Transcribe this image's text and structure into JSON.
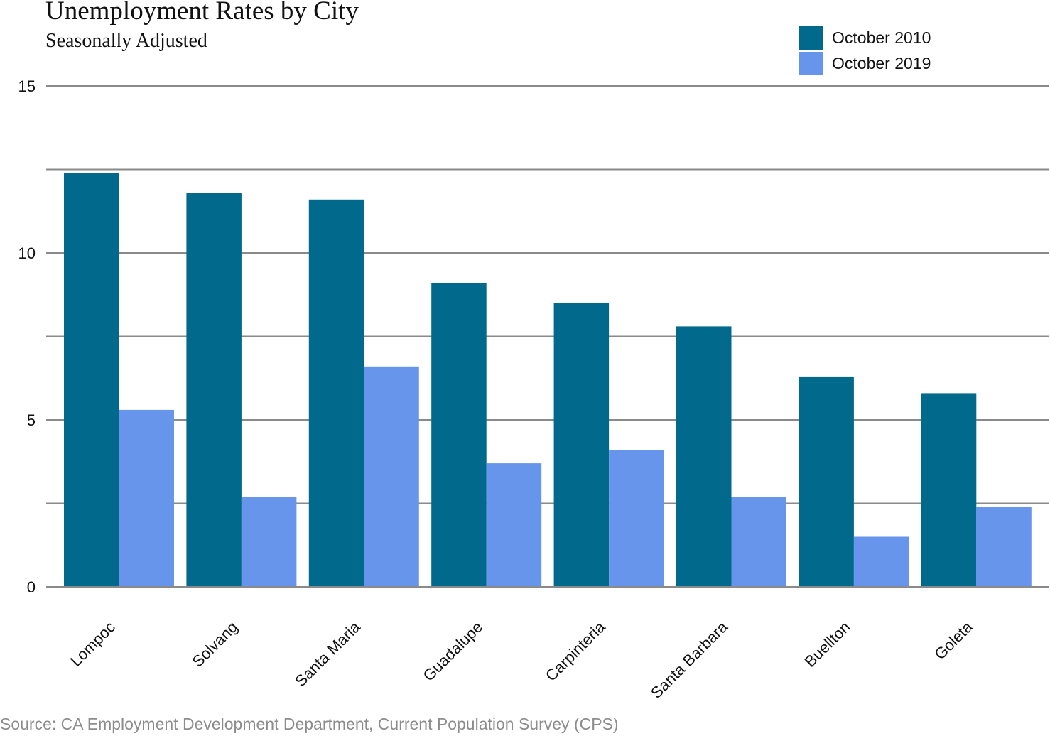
{
  "chart_data": {
    "type": "bar",
    "title": "Unemployment Rates by City",
    "subtitle": "Seasonally Adjusted",
    "source": "Source: CA Employment Development Department, Current Population Survey (CPS)",
    "categories": [
      "Lompoc",
      "Solvang",
      "Santa Maria",
      "Guadalupe",
      "Carpinteria",
      "Santa Barbara",
      "Buellton",
      "Goleta"
    ],
    "series": [
      {
        "name": "October 2010",
        "color": "#00698c",
        "values": [
          12.4,
          11.8,
          11.6,
          9.1,
          8.5,
          7.8,
          6.3,
          5.8
        ]
      },
      {
        "name": "October 2019",
        "color": "#6895ec",
        "values": [
          5.3,
          2.7,
          6.6,
          3.7,
          4.1,
          2.7,
          1.5,
          2.4
        ]
      }
    ],
    "ylim": [
      0,
      15
    ],
    "y_ticks": [
      0,
      5,
      10,
      15
    ],
    "gridlines": [
      0,
      2.5,
      5,
      7.5,
      10,
      12.5,
      15
    ],
    "grid": true,
    "legend_position": "top-right",
    "xlabel": "",
    "ylabel": ""
  }
}
